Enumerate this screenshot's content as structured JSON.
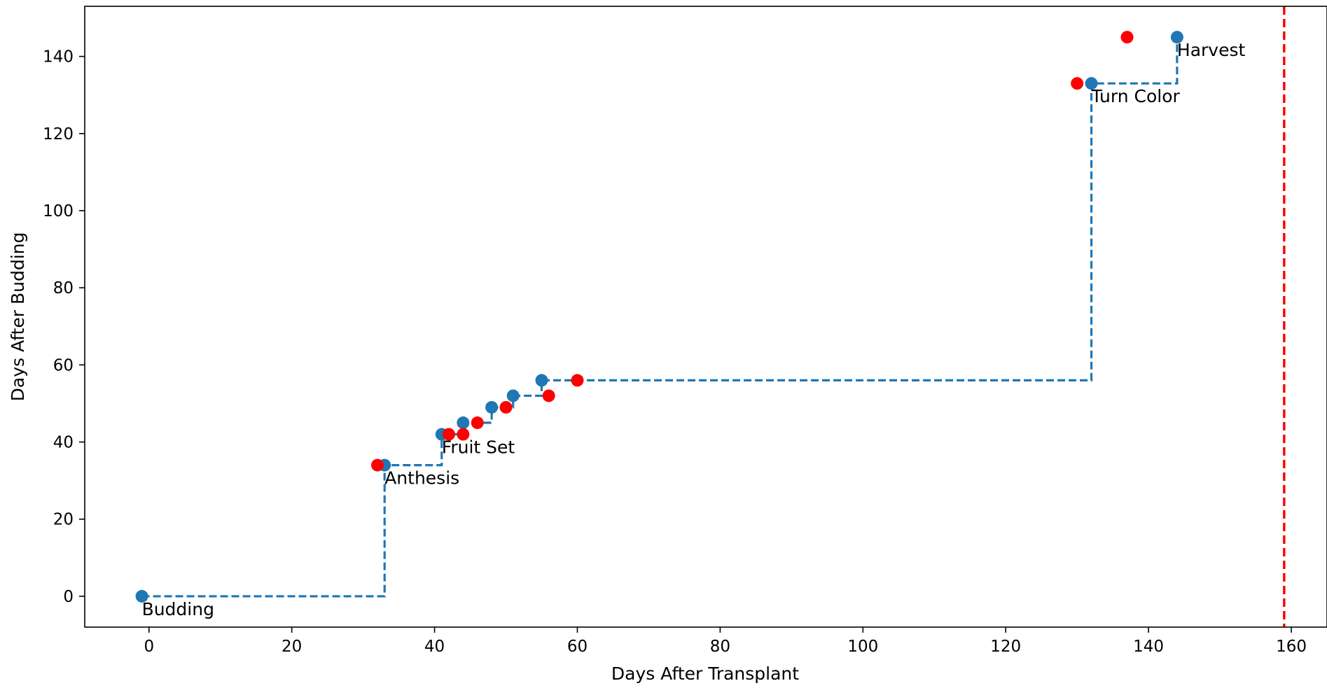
{
  "chart_data": {
    "type": "line",
    "title": "",
    "xlabel": "Days After Transplant",
    "ylabel": "Days After Budding",
    "xlim": [
      -9,
      165
    ],
    "ylim": [
      -8,
      153
    ],
    "xticks": [
      0,
      20,
      40,
      60,
      80,
      100,
      120,
      140,
      160
    ],
    "yticks": [
      0,
      20,
      40,
      60,
      80,
      100,
      120,
      140
    ],
    "grid": false,
    "legend": "none",
    "colors": {
      "step_line": "#1f77b4",
      "observed": "#1f77b4",
      "predicted": "#ff0000",
      "reference_line": "#ff0000"
    },
    "series": [
      {
        "style": "step-dashed",
        "x": [
          -1,
          33,
          41,
          44,
          48,
          51,
          55,
          132,
          144
        ],
        "y": [
          0,
          34,
          42,
          45,
          49,
          52,
          56,
          133,
          145
        ]
      },
      {
        "style": "markers",
        "x": [
          -1,
          33,
          41,
          44,
          48,
          51,
          55,
          132,
          144
        ],
        "y": [
          0,
          34,
          42,
          45,
          49,
          52,
          56,
          133,
          145
        ]
      },
      {
        "style": "markers",
        "x": [
          32,
          42,
          44,
          46,
          50,
          56,
          60,
          130,
          137
        ],
        "y": [
          34,
          42,
          42,
          45,
          49,
          52,
          56,
          133,
          145
        ]
      }
    ],
    "vline": {
      "x": 159,
      "style": "dashed"
    },
    "annotations": [
      {
        "text": "Budding",
        "x": -1,
        "y": 0
      },
      {
        "text": "Anthesis",
        "x": 33,
        "y": 34
      },
      {
        "text": "Fruit Set",
        "x": 41,
        "y": 42
      },
      {
        "text": "Turn Color",
        "x": 132,
        "y": 133
      },
      {
        "text": "Harvest",
        "x": 144,
        "y": 145
      }
    ]
  }
}
